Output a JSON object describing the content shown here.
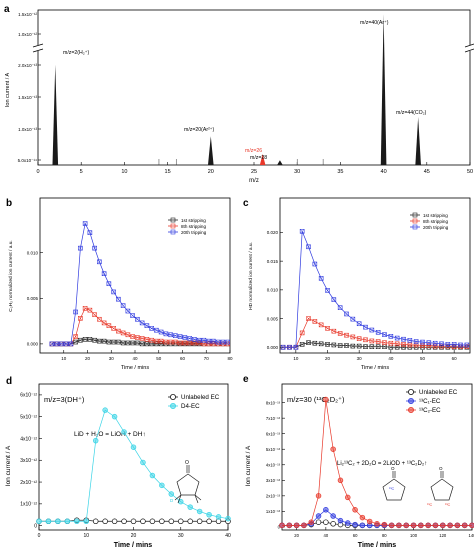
{
  "chart_data": [
    {
      "panel": "a",
      "type": "bar",
      "xlabel": "m/z",
      "ylabel": "Ion current / A",
      "xlim": [
        0,
        50
      ],
      "x_ticks": [
        "0",
        "5",
        "10",
        "15",
        "20",
        "25",
        "30",
        "35",
        "40",
        "45",
        "50"
      ],
      "y_ticks_lower": [
        "5.0x10⁻¹⁴",
        "1.0x10⁻¹³",
        "1.5x10⁻¹³",
        "2.0x10⁻¹³"
      ],
      "y_ticks_upper": [
        "1.0x10⁻¹²",
        "1.5x10⁻¹²"
      ],
      "y_break": true,
      "peaks": [
        {
          "x": 2,
          "y": 2.1e-13,
          "label": "m/z=2(H₂⁺)"
        },
        {
          "x": 20,
          "y": 6e-14,
          "label": "m/z=20(Ar²⁺)"
        },
        {
          "x": 26,
          "y": 2.3e-14,
          "label": "m/z=26",
          "color": "#e8382a"
        },
        {
          "x": 28,
          "y": 1e-14,
          "label": "m/z=28"
        },
        {
          "x": 40,
          "y": 1.5e-12,
          "label": "m/z=40(Ar⁺)"
        },
        {
          "x": 44,
          "y": 1e-13,
          "label": "m/z=44(CO₂)"
        }
      ]
    },
    {
      "panel": "b",
      "type": "line",
      "xlabel": "Time / mins",
      "ylabel": "C₂H₂ normalized ion current / a.u.",
      "xlim": [
        0,
        80
      ],
      "ylim": [
        -0.001,
        0.016
      ],
      "x_ticks": [
        "10",
        "20",
        "30",
        "40",
        "50",
        "60",
        "70",
        "80"
      ],
      "y_ticks": [
        "0.000",
        "0.005",
        "0.010"
      ],
      "legend": "top-right",
      "x": [
        5,
        7,
        9,
        11,
        13,
        15,
        17,
        19,
        21,
        23,
        25,
        27,
        29,
        31,
        33,
        35,
        37,
        39,
        41,
        43,
        45,
        47,
        49,
        51,
        53,
        55,
        57,
        59,
        61,
        63,
        65,
        67,
        69,
        71,
        73,
        75,
        77,
        79
      ],
      "series": [
        {
          "name": "1st stripping",
          "color": "#222222",
          "values": [
            0,
            0,
            0,
            0,
            0,
            0.0002,
            0.0004,
            0.0005,
            0.0005,
            0.0004,
            0.0003,
            0.0003,
            0.0002,
            0.0002,
            0.0002,
            0.0001,
            0.0001,
            0.0001,
            0.0001,
            0,
            0,
            0,
            0,
            0,
            0,
            0,
            0,
            0,
            0,
            0,
            0,
            0,
            0,
            0,
            0,
            0,
            0,
            0
          ]
        },
        {
          "name": "8th stripping",
          "color": "#e8382a",
          "values": [
            0,
            0,
            0,
            0,
            0,
            0.0008,
            0.0028,
            0.0039,
            0.0037,
            0.0032,
            0.0027,
            0.0023,
            0.002,
            0.0017,
            0.0014,
            0.0012,
            0.001,
            0.0008,
            0.0007,
            0.0006,
            0.0005,
            0.0004,
            0.0003,
            0.0003,
            0.0002,
            0.0002,
            0.0002,
            0.0001,
            0.0001,
            0.0001,
            0.0001,
            0.0001,
            0,
            0,
            0,
            0,
            0,
            0
          ]
        },
        {
          "name": "20th tripping",
          "color": "#2f3adf",
          "values": [
            0,
            0,
            0,
            0,
            0,
            0.0035,
            0.0105,
            0.0132,
            0.0122,
            0.0105,
            0.009,
            0.0077,
            0.0066,
            0.0057,
            0.0049,
            0.0042,
            0.0036,
            0.0031,
            0.0027,
            0.0023,
            0.002,
            0.0017,
            0.0015,
            0.0013,
            0.0011,
            0.001,
            0.0009,
            0.0008,
            0.0007,
            0.0006,
            0.0005,
            0.0004,
            0.0004,
            0.0003,
            0.0003,
            0.0002,
            0.0002,
            0.0002
          ]
        }
      ]
    },
    {
      "panel": "c",
      "type": "line",
      "xlabel": "Time / mins",
      "ylabel": "HD normalized ion current / a.u.",
      "xlim": [
        5,
        65
      ],
      "ylim": [
        -0.001,
        0.026
      ],
      "x_ticks": [
        "10",
        "20",
        "30",
        "40",
        "50",
        "60"
      ],
      "y_ticks": [
        "0.000",
        "0.005",
        "0.010",
        "0.015",
        "0.020"
      ],
      "legend": "top-right",
      "x": [
        6,
        8,
        10,
        12,
        14,
        16,
        18,
        20,
        22,
        24,
        26,
        28,
        30,
        32,
        34,
        36,
        38,
        40,
        42,
        44,
        46,
        48,
        50,
        52,
        54,
        56,
        58,
        60,
        62,
        64
      ],
      "series": [
        {
          "name": "1st stripping",
          "color": "#222222",
          "values": [
            0,
            0,
            0,
            0.0005,
            0.0008,
            0.0007,
            0.0006,
            0.0005,
            0.0004,
            0.0003,
            0.0003,
            0.0002,
            0.0002,
            0.0001,
            0.0001,
            0.0001,
            0.0001,
            0,
            0,
            0,
            0,
            0,
            0,
            0,
            0,
            0,
            0,
            0,
            0,
            0
          ]
        },
        {
          "name": "8th stripping",
          "color": "#e8382a",
          "values": [
            0,
            0,
            0,
            0.0025,
            0.005,
            0.0045,
            0.0039,
            0.0033,
            0.0028,
            0.0024,
            0.0021,
            0.0018,
            0.0015,
            0.0013,
            0.0011,
            0.001,
            0.0008,
            0.0007,
            0.0006,
            0.0005,
            0.0004,
            0.0004,
            0.0003,
            0.0003,
            0.0002,
            0.0002,
            0.0002,
            0.0001,
            0.0001,
            0.0001
          ]
        },
        {
          "name": "20th tripping",
          "color": "#2f3adf",
          "values": [
            0,
            0,
            0,
            0.0202,
            0.0175,
            0.0145,
            0.012,
            0.0099,
            0.0083,
            0.0069,
            0.0058,
            0.0049,
            0.0041,
            0.0035,
            0.003,
            0.0026,
            0.0022,
            0.0019,
            0.0016,
            0.0014,
            0.0012,
            0.001,
            0.0009,
            0.0008,
            0.0007,
            0.0006,
            0.0005,
            0.0005,
            0.0004,
            0.0004
          ]
        }
      ]
    },
    {
      "panel": "d",
      "type": "line",
      "title": "m/z=3(DH⁺)",
      "xlabel": "Time / mins",
      "ylabel": "Ion current / A",
      "xlim": [
        0,
        40
      ],
      "ylim": [
        -2e-13,
        6.5e-12
      ],
      "x_ticks": [
        "0",
        "10",
        "20",
        "30",
        "40"
      ],
      "y_ticks": [
        "0",
        "1x10⁻¹²",
        "2x10⁻¹²",
        "3x10⁻¹²",
        "4x10⁻¹²",
        "5x10⁻¹²",
        "6x10⁻¹²"
      ],
      "legend": "top-right",
      "annotation": "LiD + H₂O = LiOH + DH↑",
      "x": [
        0,
        2,
        4,
        6,
        8,
        10,
        12,
        14,
        16,
        18,
        20,
        22,
        24,
        26,
        28,
        30,
        32,
        34,
        36,
        38,
        40
      ],
      "series": [
        {
          "name": "Unlabeled EC",
          "color": "#111111",
          "values": [
            2e-13,
            2e-13,
            2e-13,
            2e-13,
            2.5e-13,
            2.5e-13,
            2e-13,
            2e-13,
            2e-13,
            2e-13,
            2e-13,
            2e-13,
            2e-13,
            2e-13,
            2e-13,
            2e-13,
            2e-13,
            2e-13,
            2e-13,
            2e-13,
            2e-13
          ]
        },
        {
          "name": "D4-EC",
          "color": "#3ad4e6",
          "values": [
            2e-13,
            2e-13,
            2e-13,
            2e-13,
            2e-13,
            2e-13,
            3.9e-12,
            5.3e-12,
            5e-12,
            4.3e-12,
            3.6e-12,
            2.9e-12,
            2.3e-12,
            1.85e-12,
            1.45e-12,
            1.1e-12,
            8.5e-13,
            6.5e-13,
            5e-13,
            4e-13,
            3.2e-13
          ]
        }
      ]
    },
    {
      "panel": "e",
      "type": "line",
      "title": "m/z=30 (¹³C₂D₂⁺)",
      "xlabel": "Time / mins",
      "ylabel": "Ion current / A",
      "xlim": [
        10,
        140
      ],
      "ylim": [
        -2e-14,
        9.2e-13
      ],
      "x_ticks": [
        "20",
        "40",
        "60",
        "80",
        "100",
        "120",
        "140"
      ],
      "y_ticks": [
        "0",
        "1x10⁻¹³",
        "2x10⁻¹³",
        "3x10⁻¹³",
        "4x10⁻¹³",
        "5x10⁻¹³",
        "6x10⁻¹³",
        "7x10⁻¹³",
        "8x10⁻¹³"
      ],
      "legend": "top-right",
      "annotation": "Li₂¹³C₂ + 2D₂O = 2LiOD + ¹³C₂D₂↑",
      "x": [
        10,
        15,
        20,
        25,
        30,
        35,
        40,
        45,
        50,
        55,
        60,
        65,
        70,
        75,
        80,
        85,
        90,
        95,
        100,
        105,
        110,
        115,
        120,
        125,
        130,
        135,
        140
      ],
      "series": [
        {
          "name": "Unlabeled EC",
          "color": "#111111",
          "values": [
            1e-14,
            1e-14,
            1e-14,
            1e-14,
            1.5e-14,
            3e-14,
            3e-14,
            2e-14,
            1.5e-14,
            1e-14,
            1e-14,
            1e-14,
            1e-14,
            1e-14,
            1e-14,
            1e-14,
            1e-14,
            1e-14,
            1e-14,
            1e-14,
            1e-14,
            1e-14,
            1e-14,
            1e-14,
            1e-14,
            1e-14,
            1e-14
          ]
        },
        {
          "name": "¹³C₁-EC",
          "color": "#2f3adf",
          "values": [
            1e-14,
            1e-14,
            1e-14,
            1e-14,
            2e-14,
            7e-14,
            1.1e-13,
            7e-14,
            4e-14,
            2.5e-14,
            1.5e-14,
            1e-14,
            1e-14,
            1e-14,
            1e-14,
            1e-14,
            1e-14,
            1e-14,
            1e-14,
            1e-14,
            1e-14,
            1e-14,
            1e-14,
            1e-14,
            1e-14,
            1e-14,
            1e-14
          ]
        },
        {
          "name": "¹³C₂-EC",
          "color": "#e8382a",
          "values": [
            1e-14,
            1e-14,
            1e-14,
            1e-14,
            3e-14,
            2e-13,
            8.2e-13,
            5e-13,
            3e-13,
            1.9e-13,
            1.1e-13,
            6e-14,
            3.5e-14,
            2e-14,
            1.5e-14,
            1e-14,
            1e-14,
            1e-14,
            1e-14,
            1e-14,
            1e-14,
            1e-14,
            1e-14,
            1e-14,
            1e-14,
            1e-14,
            1e-14
          ]
        }
      ]
    }
  ],
  "panel_letters": {
    "a": "a",
    "b": "b",
    "c": "c",
    "d": "d",
    "e": "e"
  },
  "structures": {
    "d4_ec": {
      "ring_o": "O",
      "carbonyl_o": "O",
      "d": "D"
    },
    "c13_1_ec": {
      "ring_o": "O",
      "carbonyl_o": "O",
      "isotope": "¹³C"
    },
    "c13_2_ec": {
      "ring_o": "O",
      "carbonyl_o": "O",
      "isotope": "¹³C"
    }
  }
}
